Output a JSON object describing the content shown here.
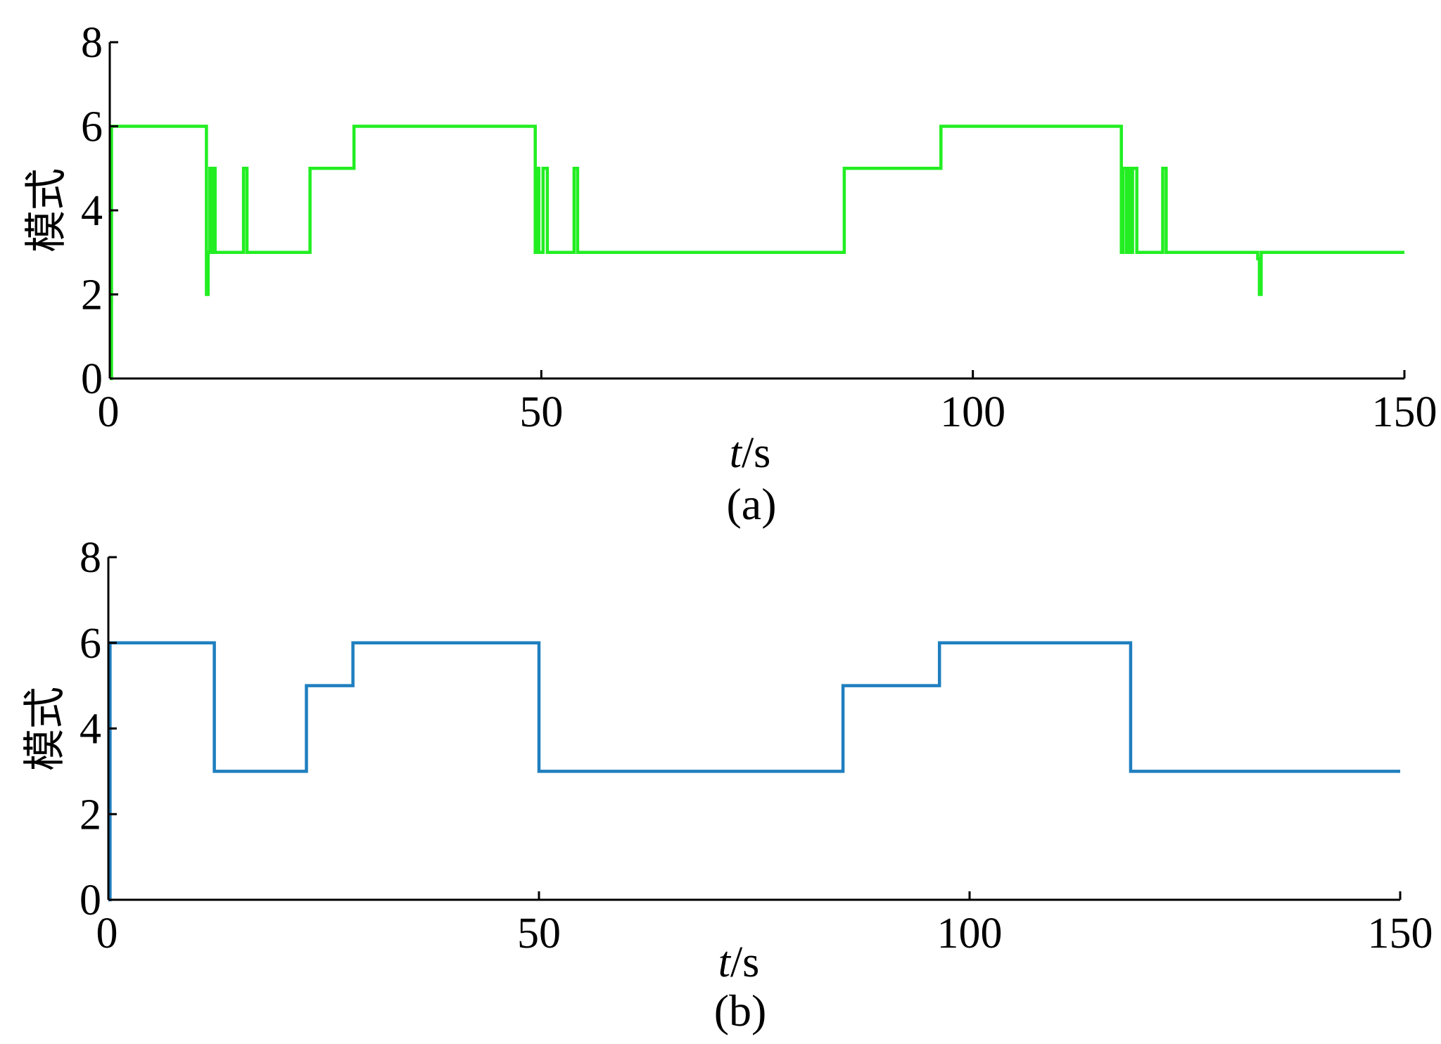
{
  "chart_data": [
    {
      "type": "line",
      "caption": "(a)",
      "xlabel": "t/s",
      "ylabel": "模式",
      "xlim": [
        0,
        150
      ],
      "ylim": [
        0,
        8
      ],
      "xticks": [
        0,
        50,
        100,
        150
      ],
      "yticks": [
        0,
        2,
        4,
        6,
        8
      ],
      "color": "#22ee22",
      "series": [
        {
          "x": [
            0,
            0.2,
            0.2,
            11.2,
            11.2,
            11.4,
            11.4,
            11.6,
            11.6,
            11.8,
            11.8,
            12.0,
            12.0,
            12.2,
            12.2,
            12.6,
            12.6,
            15.5,
            15.5,
            15.7,
            15.7,
            15.9,
            15.9,
            23.2,
            23.2,
            28.3,
            28.3,
            49.3,
            49.3,
            49.5,
            49.5,
            49.7,
            49.7,
            50.2,
            50.2,
            50.4,
            50.4,
            50.7,
            50.7,
            53.8,
            53.8,
            54.0,
            54.0,
            54.2,
            54.2,
            85.1,
            85.1,
            96.3,
            96.3,
            117.2,
            117.2,
            117.4,
            117.4,
            117.8,
            117.8,
            118.0,
            118.0,
            118.3,
            118.3,
            118.5,
            118.5,
            118.8,
            118.8,
            119.0,
            119.0,
            119.2,
            119.2,
            122.0,
            122.0,
            122.2,
            122.2,
            122.4,
            122.4,
            133.0,
            133.0,
            133.2,
            133.2,
            133.4,
            133.4,
            150
          ],
          "y": [
            0,
            0,
            6,
            6,
            2,
            2,
            3,
            3,
            5,
            5,
            3,
            3,
            5,
            5,
            3,
            3,
            3,
            3,
            5,
            5,
            5,
            5,
            3,
            3,
            5,
            5,
            6,
            6,
            3,
            3,
            5,
            5,
            3,
            3,
            5,
            5,
            5,
            5,
            3,
            3,
            5,
            5,
            5,
            5,
            3,
            3,
            5,
            5,
            6,
            6,
            3,
            3,
            5,
            5,
            3,
            3,
            5,
            5,
            3,
            3,
            5,
            5,
            5,
            5,
            3,
            3,
            3,
            3,
            5,
            5,
            5,
            5,
            3,
            3,
            2.85,
            2.85,
            2,
            2,
            3,
            3
          ]
        }
      ]
    },
    {
      "type": "line",
      "caption": "(b)",
      "xlabel": "t/s",
      "ylabel": "模式",
      "xlim": [
        0,
        150
      ],
      "ylim": [
        0,
        8
      ],
      "xticks": [
        0,
        50,
        100,
        150
      ],
      "yticks": [
        0,
        2,
        4,
        6,
        8
      ],
      "color": "#1f7fbf",
      "series": [
        {
          "x": [
            0,
            0.2,
            0.2,
            12.3,
            12.3,
            23.0,
            23.0,
            28.4,
            28.4,
            50.0,
            50.0,
            85.3,
            85.3,
            96.5,
            96.5,
            118.7,
            118.7,
            150
          ],
          "y": [
            0,
            0,
            6,
            6,
            3,
            3,
            5,
            5,
            6,
            6,
            3,
            3,
            5,
            5,
            6,
            6,
            3,
            3
          ]
        }
      ]
    }
  ]
}
